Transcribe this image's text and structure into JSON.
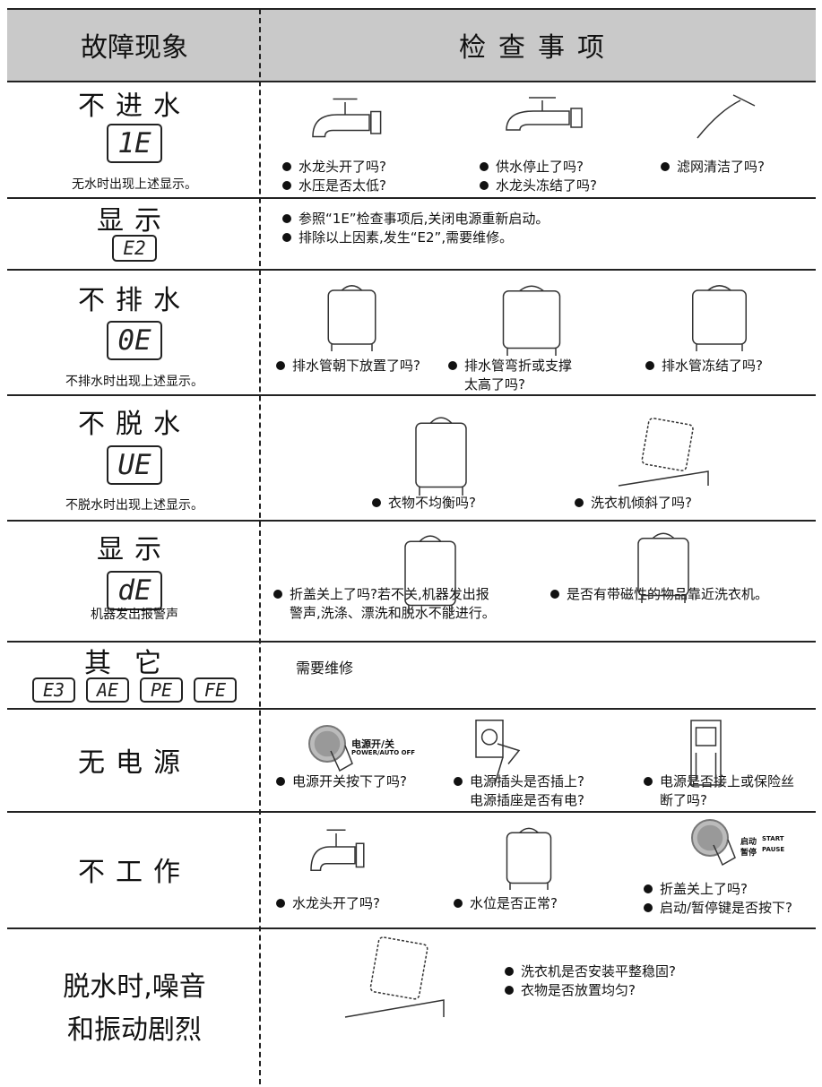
{
  "header": {
    "symptom": "故障现象",
    "check": "检查事项"
  },
  "rows": [
    {
      "symptom": [
        "不进水"
      ],
      "codes": [
        "1E"
      ],
      "note": "无水时出现上述显示。",
      "checks": [
        [
          [
            "水龙头开了吗?"
          ],
          [
            "水压是否太低?"
          ]
        ],
        [
          [
            "供水停止了吗?"
          ],
          [
            "水龙头冻结了吗?"
          ]
        ],
        [
          [
            "滤网清洁了吗?"
          ]
        ]
      ]
    },
    {
      "symptom": [
        "显示"
      ],
      "codes": [
        "E2"
      ],
      "checks": [
        [
          [
            "参照“1E”检查事项后,关闭电源重新启动。"
          ],
          [
            "排除以上因素,发生“E2”,需要维修。"
          ]
        ]
      ]
    },
    {
      "symptom": [
        "不排水"
      ],
      "codes": [
        "0E"
      ],
      "note": "不排水时出现上述显示。",
      "checks": [
        [
          [
            "排水管朝下放置了吗?"
          ]
        ],
        [
          [
            "排水管弯折或支撑",
            "太高了吗?"
          ]
        ],
        [
          [
            "排水管冻结了吗?"
          ]
        ]
      ]
    },
    {
      "symptom": [
        "不脱水"
      ],
      "codes": [
        "UE"
      ],
      "note": "不脱水时出现上述显示。",
      "checks": [
        [
          [
            "衣物不均衡吗?"
          ]
        ],
        [
          [
            "洗衣机倾斜了吗?"
          ]
        ]
      ]
    },
    {
      "symptom": [
        "显示"
      ],
      "codes": [
        "dE"
      ],
      "note": "机器发出报警声",
      "checks": [
        [
          [
            "折盖关上了吗?若不关,机器发出报",
            "警声,洗涤、漂洗和脱水不能进行。"
          ]
        ],
        [
          [
            "是否有带磁性的物品靠近洗衣机。"
          ]
        ]
      ]
    },
    {
      "symptom": [
        "其它"
      ],
      "codes": [
        "E3",
        "AE",
        "PE",
        "FE"
      ],
      "text": "需要维修"
    },
    {
      "symptom": [
        "无电源"
      ],
      "labels": [
        "电源开/关",
        "POWER/AUTO OFF"
      ],
      "checks": [
        [
          [
            "电源开关按下了吗?"
          ]
        ],
        [
          [
            "电源插头是否插上?",
            "电源插座是否有电?"
          ]
        ],
        [
          [
            "电源是否接上或保险丝",
            "断了吗?"
          ]
        ]
      ]
    },
    {
      "symptom": [
        "不工作"
      ],
      "labels": [
        "启动",
        "START",
        "暂停",
        "PAUSE"
      ],
      "checks": [
        [
          [
            "水龙头开了吗?"
          ]
        ],
        [
          [
            "水位是否正常?"
          ]
        ],
        [
          [
            "折盖关上了吗?"
          ],
          [
            "启动/暂停键是否按下?"
          ]
        ]
      ]
    },
    {
      "symptom": [
        "脱水时,噪音",
        "和振动剧烈"
      ],
      "checks": [
        [
          [
            "洗衣机是否安装平整稳固?"
          ],
          [
            "衣物是否放置均匀?"
          ]
        ]
      ]
    }
  ]
}
